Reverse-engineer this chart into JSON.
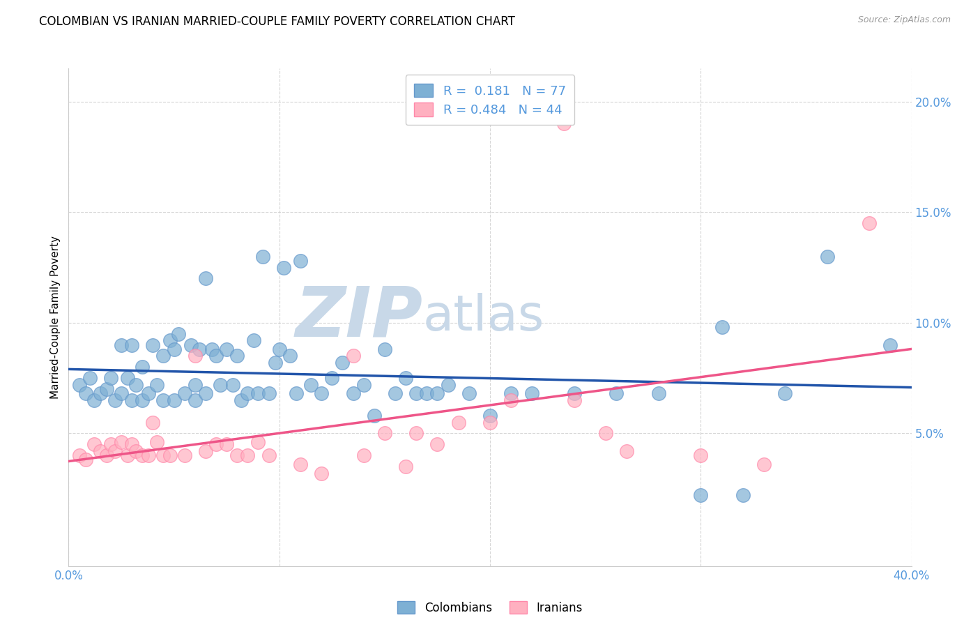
{
  "title": "COLOMBIAN VS IRANIAN MARRIED-COUPLE FAMILY POVERTY CORRELATION CHART",
  "source": "Source: ZipAtlas.com",
  "ylabel": "Married-Couple Family Poverty",
  "yticks": [
    0.05,
    0.1,
    0.15,
    0.2
  ],
  "ytick_labels": [
    "5.0%",
    "10.0%",
    "15.0%",
    "20.0%"
  ],
  "xlim": [
    0.0,
    0.4
  ],
  "ylim": [
    -0.01,
    0.215
  ],
  "colombian_R": 0.181,
  "colombian_N": 77,
  "iranian_R": 0.484,
  "iranian_N": 44,
  "colombian_color": "#7EB0D4",
  "iranian_color": "#FFB0C0",
  "colombian_edge": "#6699CC",
  "iranian_edge": "#FF88AA",
  "trendline_colombian_color": "#2255AA",
  "trendline_iranian_color": "#EE5588",
  "watermark_zip": "ZIP",
  "watermark_atlas": "atlas",
  "watermark_color": "#C8D8E8",
  "background_color": "#FFFFFF",
  "grid_color": "#CCCCCC",
  "tick_label_color": "#5599DD",
  "colombian_x": [
    0.005,
    0.008,
    0.01,
    0.012,
    0.015,
    0.018,
    0.02,
    0.022,
    0.025,
    0.025,
    0.028,
    0.03,
    0.03,
    0.032,
    0.035,
    0.035,
    0.038,
    0.04,
    0.042,
    0.045,
    0.045,
    0.048,
    0.05,
    0.05,
    0.052,
    0.055,
    0.058,
    0.06,
    0.06,
    0.062,
    0.065,
    0.065,
    0.068,
    0.07,
    0.072,
    0.075,
    0.078,
    0.08,
    0.082,
    0.085,
    0.088,
    0.09,
    0.092,
    0.095,
    0.098,
    0.1,
    0.102,
    0.105,
    0.108,
    0.11,
    0.115,
    0.12,
    0.125,
    0.13,
    0.135,
    0.14,
    0.145,
    0.15,
    0.155,
    0.16,
    0.165,
    0.17,
    0.175,
    0.18,
    0.19,
    0.2,
    0.21,
    0.22,
    0.24,
    0.26,
    0.28,
    0.3,
    0.31,
    0.32,
    0.34,
    0.36,
    0.39
  ],
  "colombian_y": [
    0.072,
    0.068,
    0.075,
    0.065,
    0.068,
    0.07,
    0.075,
    0.065,
    0.09,
    0.068,
    0.075,
    0.09,
    0.065,
    0.072,
    0.08,
    0.065,
    0.068,
    0.09,
    0.072,
    0.085,
    0.065,
    0.092,
    0.088,
    0.065,
    0.095,
    0.068,
    0.09,
    0.072,
    0.065,
    0.088,
    0.12,
    0.068,
    0.088,
    0.085,
    0.072,
    0.088,
    0.072,
    0.085,
    0.065,
    0.068,
    0.092,
    0.068,
    0.13,
    0.068,
    0.082,
    0.088,
    0.125,
    0.085,
    0.068,
    0.128,
    0.072,
    0.068,
    0.075,
    0.082,
    0.068,
    0.072,
    0.058,
    0.088,
    0.068,
    0.075,
    0.068,
    0.068,
    0.068,
    0.072,
    0.068,
    0.058,
    0.068,
    0.068,
    0.068,
    0.068,
    0.068,
    0.022,
    0.098,
    0.022,
    0.068,
    0.13,
    0.09
  ],
  "iranian_x": [
    0.005,
    0.008,
    0.012,
    0.015,
    0.018,
    0.02,
    0.022,
    0.025,
    0.028,
    0.03,
    0.032,
    0.035,
    0.038,
    0.04,
    0.042,
    0.045,
    0.048,
    0.055,
    0.06,
    0.065,
    0.07,
    0.075,
    0.08,
    0.085,
    0.09,
    0.095,
    0.11,
    0.12,
    0.135,
    0.14,
    0.15,
    0.16,
    0.165,
    0.175,
    0.185,
    0.2,
    0.21,
    0.235,
    0.24,
    0.255,
    0.265,
    0.3,
    0.33,
    0.38
  ],
  "iranian_y": [
    0.04,
    0.038,
    0.045,
    0.042,
    0.04,
    0.045,
    0.042,
    0.046,
    0.04,
    0.045,
    0.042,
    0.04,
    0.04,
    0.055,
    0.046,
    0.04,
    0.04,
    0.04,
    0.085,
    0.042,
    0.045,
    0.045,
    0.04,
    0.04,
    0.046,
    0.04,
    0.036,
    0.032,
    0.085,
    0.04,
    0.05,
    0.035,
    0.05,
    0.045,
    0.055,
    0.055,
    0.065,
    0.19,
    0.065,
    0.05,
    0.042,
    0.04,
    0.036,
    0.145
  ]
}
